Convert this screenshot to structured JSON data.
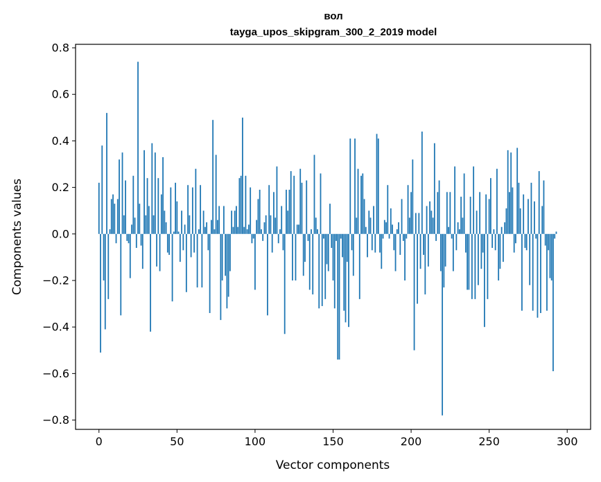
{
  "chart_data": {
    "type": "bar",
    "title_line1": "вол",
    "title_line2": "tayga_upos_skipgram_300_2_2019 model",
    "xlabel": "Vector components",
    "ylabel": "Components values",
    "xlim": [
      -15,
      315
    ],
    "ylim": [
      -0.84,
      0.815
    ],
    "xticks": [
      0,
      50,
      100,
      150,
      200,
      250,
      300
    ],
    "yticks": [
      -0.8,
      -0.6,
      -0.4,
      -0.2,
      0.0,
      0.2,
      0.4,
      0.6,
      0.8
    ],
    "ytick_labels": [
      "−0.8",
      "−0.6",
      "−0.4",
      "−0.2",
      "0.0",
      "0.2",
      "0.4",
      "0.6",
      "0.8"
    ],
    "xtick_labels": [
      "0",
      "50",
      "100",
      "150",
      "200",
      "250",
      "300"
    ],
    "bar_color": "#1f77b4",
    "values": [
      0.22,
      -0.51,
      0.38,
      -0.2,
      -0.41,
      0.52,
      -0.28,
      0.02,
      0.15,
      0.17,
      0.13,
      -0.04,
      0.15,
      0.32,
      -0.35,
      0.35,
      0.08,
      0.23,
      -0.03,
      -0.04,
      -0.19,
      0.04,
      0.25,
      0.07,
      -0.06,
      0.74,
      0.13,
      -0.05,
      -0.15,
      0.36,
      0.08,
      0.24,
      0.12,
      -0.42,
      0.39,
      0.08,
      0.35,
      -0.14,
      0.24,
      -0.16,
      0.17,
      0.33,
      0.1,
      0.05,
      -0.08,
      -0.09,
      0.2,
      -0.29,
      0.01,
      0.22,
      0.14,
      0.01,
      -0.12,
      0.1,
      -0.07,
      0.04,
      -0.25,
      0.21,
      0.08,
      -0.1,
      0.2,
      -0.08,
      0.28,
      -0.23,
      0.02,
      0.21,
      -0.23,
      0.1,
      0.03,
      0.05,
      -0.07,
      -0.34,
      0.06,
      0.49,
      0.02,
      0.34,
      0.06,
      0.12,
      -0.37,
      -0.2,
      0.12,
      -0.18,
      -0.32,
      -0.27,
      -0.16,
      0.1,
      0.03,
      0.1,
      0.12,
      0.03,
      0.24,
      0.25,
      0.5,
      0.03,
      0.25,
      0.02,
      0.04,
      0.2,
      -0.04,
      -0.02,
      -0.24,
      0.06,
      0.15,
      0.19,
      0.02,
      -0.03,
      0.05,
      0.08,
      -0.35,
      0.21,
      0.08,
      -0.08,
      0.18,
      0.07,
      0.29,
      -0.04,
      0.02,
      0.12,
      -0.07,
      -0.43,
      0.19,
      0.1,
      0.19,
      0.27,
      -0.2,
      0.25,
      -0.2,
      0.04,
      0.04,
      0.28,
      0.22,
      -0.18,
      -0.12,
      0.23,
      -0.03,
      -0.24,
      0.02,
      -0.26,
      0.34,
      0.07,
      0.02,
      -0.32,
      0.26,
      -0.31,
      -0.02,
      -0.28,
      -0.13,
      -0.16,
      0.13,
      -0.06,
      -0.2,
      -0.32,
      -0.03,
      -0.54,
      -0.54,
      -0.02,
      -0.1,
      -0.33,
      -0.38,
      -0.12,
      -0.4,
      0.41,
      -0.07,
      -0.18,
      0.41,
      0.07,
      0.28,
      -0.28,
      0.25,
      0.26,
      0.15,
      0.03,
      -0.1,
      0.1,
      0.07,
      -0.07,
      0.12,
      -0.08,
      0.43,
      0.41,
      -0.08,
      -0.15,
      -0.02,
      0.06,
      0.05,
      0.21,
      -0.02,
      0.11,
      0.04,
      -0.07,
      -0.16,
      0.02,
      0.05,
      -0.09,
      0.15,
      -0.03,
      -0.2,
      -0.02,
      0.21,
      0.07,
      0.18,
      0.32,
      -0.5,
      0.09,
      -0.3,
      0.09,
      -0.15,
      0.44,
      -0.09,
      -0.26,
      0.12,
      -0.14,
      0.14,
      0.1,
      0.07,
      0.39,
      -0.03,
      0.18,
      0.23,
      -0.16,
      -0.78,
      -0.23,
      -0.14,
      0.18,
      0.03,
      0.18,
      -0.02,
      -0.16,
      0.29,
      -0.07,
      0.05,
      0.02,
      0.16,
      0.07,
      0.26,
      -0.08,
      -0.24,
      -0.24,
      0.16,
      -0.28,
      0.29,
      -0.28,
      0.1,
      -0.22,
      0.18,
      -0.15,
      -0.08,
      -0.4,
      0.17,
      -0.28,
      0.15,
      0.24,
      -0.06,
      0.02,
      -0.07,
      0.28,
      -0.2,
      -0.15,
      0.03,
      -0.12,
      0.05,
      0.11,
      0.36,
      0.18,
      0.35,
      0.2,
      -0.08,
      -0.04,
      0.37,
      0.22,
      0.11,
      -0.33,
      0.17,
      -0.06,
      -0.07,
      0.15,
      -0.22,
      0.22,
      -0.33,
      0.14,
      -0.02,
      -0.36,
      0.27,
      -0.34,
      0.12,
      0.23,
      -0.05,
      -0.33,
      -0.07,
      -0.19,
      -0.2,
      -0.59,
      -0.02,
      0.01
    ]
  }
}
